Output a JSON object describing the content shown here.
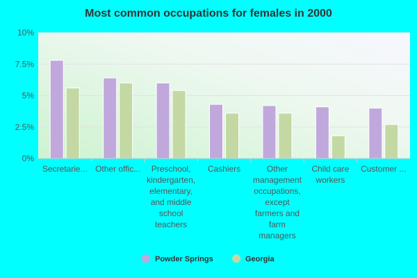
{
  "chart_data": {
    "type": "bar",
    "title": "Most common occupations for females in 2000",
    "xlabel": "",
    "ylabel": "",
    "ylim": [
      0,
      10
    ],
    "yticks": [
      "0%",
      "2.5%",
      "5%",
      "7.5%",
      "10%"
    ],
    "ytick_values": [
      0,
      2.5,
      5,
      7.5,
      10
    ],
    "categories": [
      [
        "Secretarie..."
      ],
      [
        "Other offic..."
      ],
      [
        "Preschool,",
        "kindergarten,",
        "elementary,",
        "and middle",
        "school",
        "teachers"
      ],
      [
        "Cashiers"
      ],
      [
        "Other",
        "management",
        "occupations,",
        "except",
        "farmers and",
        "farm",
        "managers"
      ],
      [
        "Child care",
        "workers"
      ],
      [
        "Customer ..."
      ]
    ],
    "series": [
      {
        "name": "Powder Springs",
        "color": "#c0a8dc",
        "values": [
          7.8,
          6.4,
          6.0,
          4.3,
          4.2,
          4.1,
          4.0
        ]
      },
      {
        "name": "Georgia",
        "color": "#c4d8a4",
        "values": [
          5.6,
          6.0,
          5.4,
          3.6,
          3.6,
          1.8,
          2.7
        ]
      }
    ],
    "grid": true,
    "legend": "bottom"
  }
}
